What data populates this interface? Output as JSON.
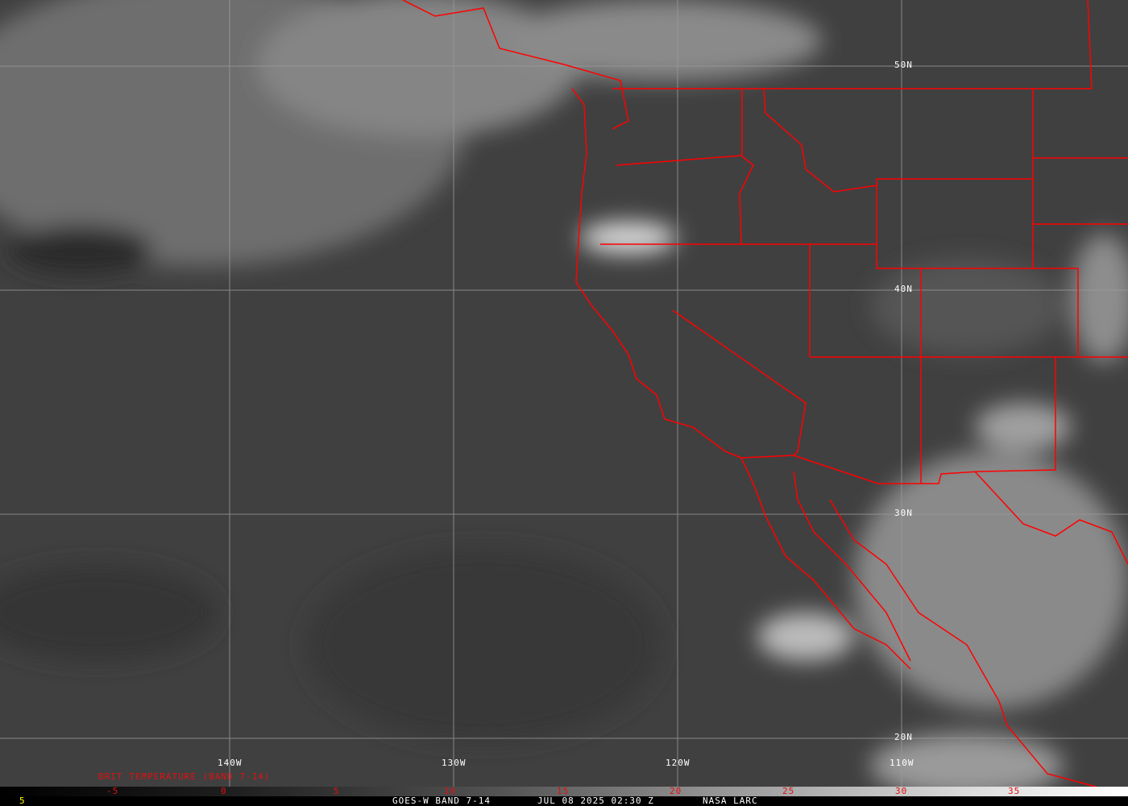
{
  "map": {
    "longitude_labels": [
      "140W",
      "130W",
      "120W",
      "110W"
    ],
    "latitude_labels": [
      "50N",
      "40N",
      "30N",
      "20N"
    ],
    "border_color": "#ff0000",
    "grid_color": "#9a9a9a"
  },
  "colorbar": {
    "title": "BRIT TEMPERATURE (BAND 7-14)",
    "ticks": [
      "-5",
      "0",
      "5",
      "10",
      "15",
      "20",
      "25",
      "30",
      "35"
    ],
    "label_color": "#e01010"
  },
  "footer": {
    "left_value": "5",
    "product": "GOES-W BAND 7-14",
    "datetime": "JUL 08 2025 02:30 Z",
    "source": "NASA LARC"
  }
}
